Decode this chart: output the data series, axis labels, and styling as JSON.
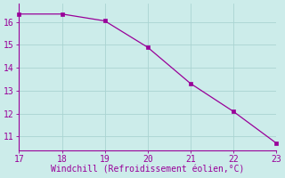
{
  "x": [
    17,
    18,
    19,
    20,
    21,
    22,
    23
  ],
  "y": [
    16.35,
    16.35,
    16.05,
    14.9,
    13.32,
    12.1,
    10.72
  ],
  "line_color": "#990099",
  "marker_color": "#990099",
  "bg_color": "#ccecea",
  "grid_color": "#aad4d2",
  "xlabel": "Windchill (Refroidissement éolien,°C)",
  "xlabel_color": "#990099",
  "tick_color": "#990099",
  "spine_color": "#990099",
  "xlim": [
    17,
    23
  ],
  "ylim": [
    10.4,
    16.8
  ],
  "xticks": [
    17,
    18,
    19,
    20,
    21,
    22,
    23
  ],
  "yticks": [
    11,
    12,
    13,
    14,
    15,
    16
  ],
  "font_size": 7.0,
  "marker_size": 2.5,
  "linewidth": 0.9
}
